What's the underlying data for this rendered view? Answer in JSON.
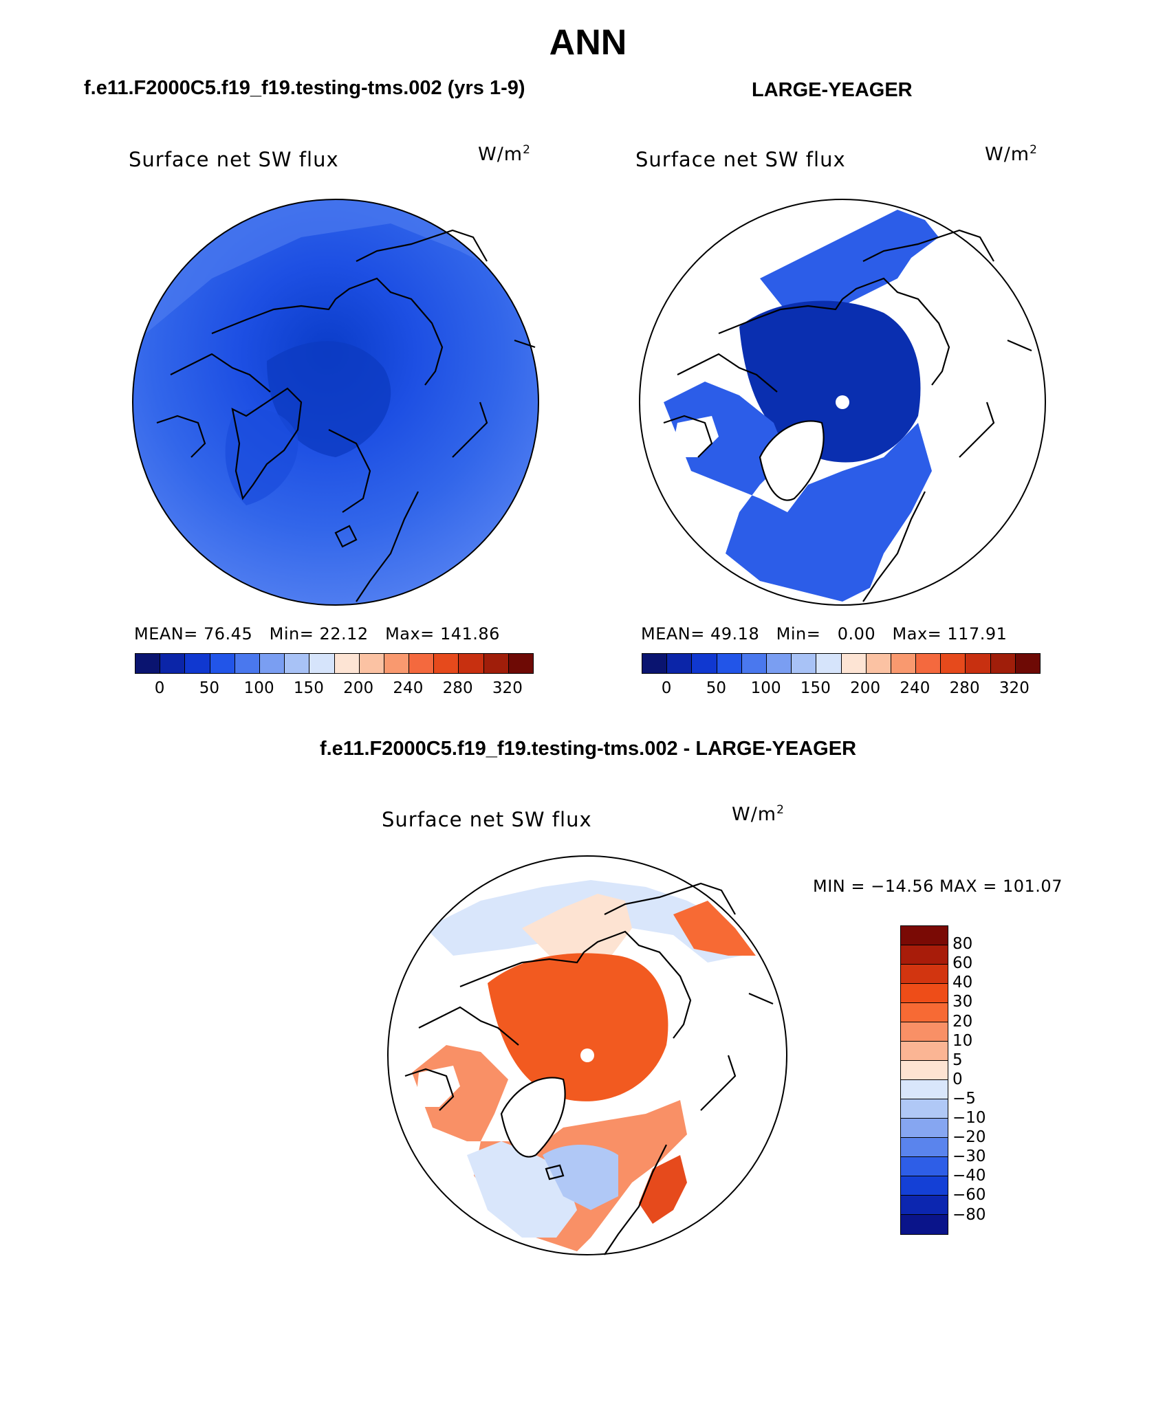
{
  "title": "ANN",
  "panel_left": {
    "case_title": "f.e11.F2000C5.f19_f19.testing-tms.002 (yrs 1-9)",
    "plot_label": "Surface net SW flux",
    "units_base": "W/m",
    "units_exp": "2",
    "mean_label": "MEAN=",
    "mean_value": "76.45",
    "min_label": "Min=",
    "min_value": "22.12",
    "max_label": "Max=",
    "max_value": "141.86"
  },
  "panel_right": {
    "case_title": "LARGE-YEAGER",
    "plot_label": "Surface net SW flux",
    "units_base": "W/m",
    "units_exp": "2",
    "mean_label": "MEAN=",
    "mean_value": "49.18",
    "min_label": "Min=",
    "min_value": "0.00",
    "max_label": "Max=",
    "max_value": "117.91"
  },
  "panel_diff": {
    "case_title": "f.e11.F2000C5.f19_f19.testing-tms.002 - LARGE-YEAGER",
    "plot_label": "Surface net SW flux",
    "units_base": "W/m",
    "units_exp": "2",
    "minmax_text": "MIN = −14.56 MAX = 101.07"
  },
  "colorbar_main": {
    "colors": [
      "#0a1470",
      "#0b25a8",
      "#1038d0",
      "#2255e8",
      "#4a78ee",
      "#7a9ef2",
      "#a8c2f6",
      "#d6e4fb",
      "#fde4d4",
      "#fbc2a3",
      "#f9996f",
      "#f4693e",
      "#e64a1c",
      "#c83010",
      "#a01e0a",
      "#6e0a05"
    ],
    "labels": [
      "0",
      "50",
      "100",
      "150",
      "200",
      "240",
      "280",
      "320"
    ]
  },
  "colorbar_diff": {
    "colors": [
      "#7a0a05",
      "#a81c0a",
      "#d23510",
      "#ee4d18",
      "#f76a34",
      "#f99066",
      "#fbb594",
      "#fde3d2",
      "#d9e6fb",
      "#b0c8f6",
      "#86a6f1",
      "#5a84ed",
      "#2e5ee7",
      "#1440d6",
      "#0c26b0",
      "#0a148a"
    ],
    "labels": [
      "80",
      "60",
      "40",
      "30",
      "20",
      "10",
      "5",
      "0",
      "−5",
      "−10",
      "−20",
      "−30",
      "−40",
      "−60",
      "−80"
    ]
  },
  "chart_data": [
    {
      "type": "heatmap",
      "title": "Surface net SW flux",
      "subtitle": "f.e11.F2000C5.f19_f19.testing-tms.002 (yrs 1-9)",
      "units": "W/m2",
      "projection": "north polar stereographic",
      "mean": 76.45,
      "min": 22.12,
      "max": 141.86,
      "contour_levels": [
        0,
        25,
        50,
        75,
        100,
        125,
        150,
        175,
        200,
        220,
        240,
        260,
        280,
        300,
        320
      ]
    },
    {
      "type": "heatmap",
      "title": "Surface net SW flux",
      "subtitle": "LARGE-YEAGER",
      "units": "W/m2",
      "projection": "north polar stereographic",
      "mean": 49.18,
      "min": 0.0,
      "max": 117.91,
      "contour_levels": [
        0,
        25,
        50,
        75,
        100,
        125,
        150,
        175,
        200,
        220,
        240,
        260,
        280,
        300,
        320
      ]
    },
    {
      "type": "heatmap",
      "title": "Surface net SW flux",
      "subtitle": "f.e11.F2000C5.f19_f19.testing-tms.002 - LARGE-YEAGER",
      "units": "W/m2",
      "projection": "north polar stereographic",
      "min": -14.56,
      "max": 101.07,
      "contour_levels": [
        -80,
        -60,
        -40,
        -30,
        -20,
        -10,
        -5,
        0,
        5,
        10,
        20,
        30,
        40,
        60,
        80
      ]
    }
  ]
}
